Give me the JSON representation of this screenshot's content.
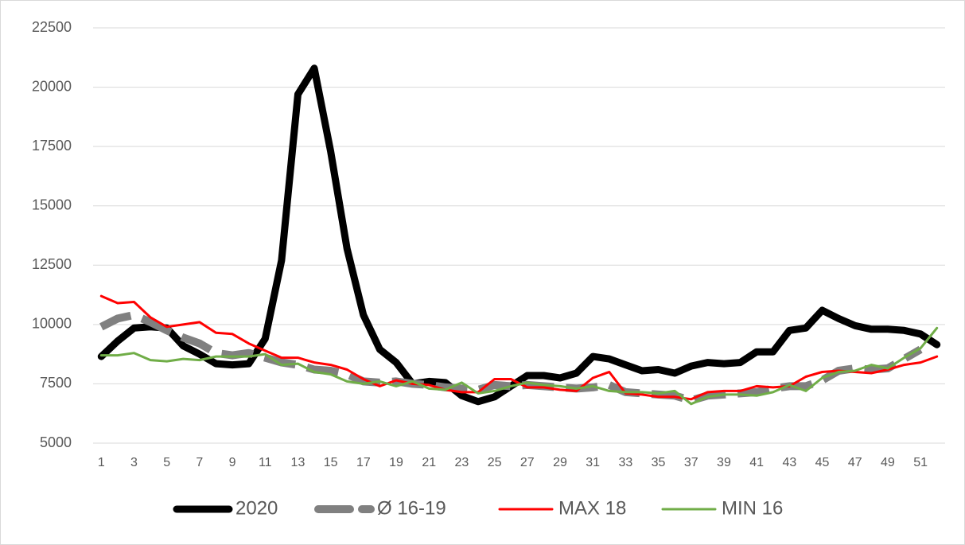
{
  "chart_data": {
    "type": "line",
    "categories": [
      "1",
      null,
      "3",
      null,
      "5",
      null,
      "7",
      null,
      "9",
      null,
      "11",
      null,
      "13",
      null,
      "15",
      null,
      "17",
      null,
      "19",
      null,
      "21",
      null,
      "23",
      null,
      "25",
      null,
      "27",
      null,
      "29",
      null,
      "31",
      null,
      "33",
      null,
      "35",
      null,
      "37",
      null,
      "39",
      null,
      "41",
      null,
      "43",
      null,
      "45",
      null,
      "47",
      null,
      "49",
      null,
      "51",
      null
    ],
    "series": [
      {
        "name": "2020",
        "color": "#000000",
        "width": 9,
        "dash": false,
        "values": [
          8650,
          9300,
          9850,
          9900,
          9850,
          9100,
          8750,
          8350,
          8300,
          8350,
          9400,
          12700,
          19700,
          20800,
          17300,
          13200,
          10400,
          8950,
          8400,
          7500,
          7600,
          7550,
          7000,
          6750,
          6950,
          7400,
          7850,
          7850,
          7750,
          7950,
          8650,
          8550,
          8300,
          8050,
          8100,
          7950,
          8250,
          8400,
          8350,
          8400,
          8850,
          8850,
          9750,
          9850,
          10600,
          10250,
          9950,
          9800,
          9800,
          9750,
          9600,
          9150
        ]
      },
      {
        "name": "Ø 16-19",
        "color": "#808080",
        "width": 10,
        "dash": true,
        "values": [
          9900,
          10250,
          10400,
          10100,
          9750,
          9450,
          9200,
          8800,
          8700,
          8800,
          8600,
          8400,
          8300,
          8100,
          8050,
          7900,
          7600,
          7550,
          7600,
          7500,
          7450,
          7350,
          7300,
          7250,
          7450,
          7400,
          7450,
          7400,
          7350,
          7300,
          7350,
          7450,
          7150,
          7100,
          7050,
          7000,
          6800,
          7000,
          7050,
          7100,
          7150,
          7300,
          7400,
          7400,
          7650,
          8050,
          8150,
          8100,
          8150,
          8550,
          8950,
          null
        ]
      },
      {
        "name": "MAX 18",
        "color": "#ff0000",
        "width": 3,
        "dash": false,
        "values": [
          11200,
          10900,
          10950,
          10300,
          9900,
          10000,
          10100,
          9650,
          9600,
          9200,
          8900,
          8600,
          8600,
          8400,
          8300,
          8100,
          7700,
          7400,
          7650,
          7500,
          7450,
          7250,
          7150,
          7150,
          7700,
          7700,
          7350,
          7350,
          7250,
          7200,
          7750,
          8000,
          7100,
          7050,
          6950,
          6950,
          6850,
          7150,
          7200,
          7200,
          7400,
          7350,
          7400,
          7800,
          8000,
          8050,
          8000,
          7950,
          8100,
          8300,
          8400,
          8650
        ]
      },
      {
        "name": "MIN 16",
        "color": "#70ad47",
        "width": 3,
        "dash": false,
        "values": [
          8700,
          8700,
          8800,
          8500,
          8450,
          8550,
          8500,
          8650,
          8650,
          8650,
          8750,
          8300,
          8350,
          8000,
          7900,
          7600,
          7500,
          7600,
          7400,
          7600,
          7300,
          7250,
          7550,
          7100,
          7200,
          7400,
          7550,
          7450,
          7400,
          7300,
          7400,
          7200,
          7150,
          7150,
          7100,
          7200,
          6650,
          6950,
          7050,
          7050,
          7000,
          7150,
          7450,
          7200,
          7750,
          8000,
          8050,
          8300,
          8150,
          8600,
          9000,
          9850
        ]
      }
    ],
    "ylim": [
      5000,
      22500
    ],
    "yticks": [
      5000,
      7500,
      10000,
      12500,
      15000,
      17500,
      20000,
      22500
    ],
    "grid": true,
    "legend": "bottom"
  }
}
